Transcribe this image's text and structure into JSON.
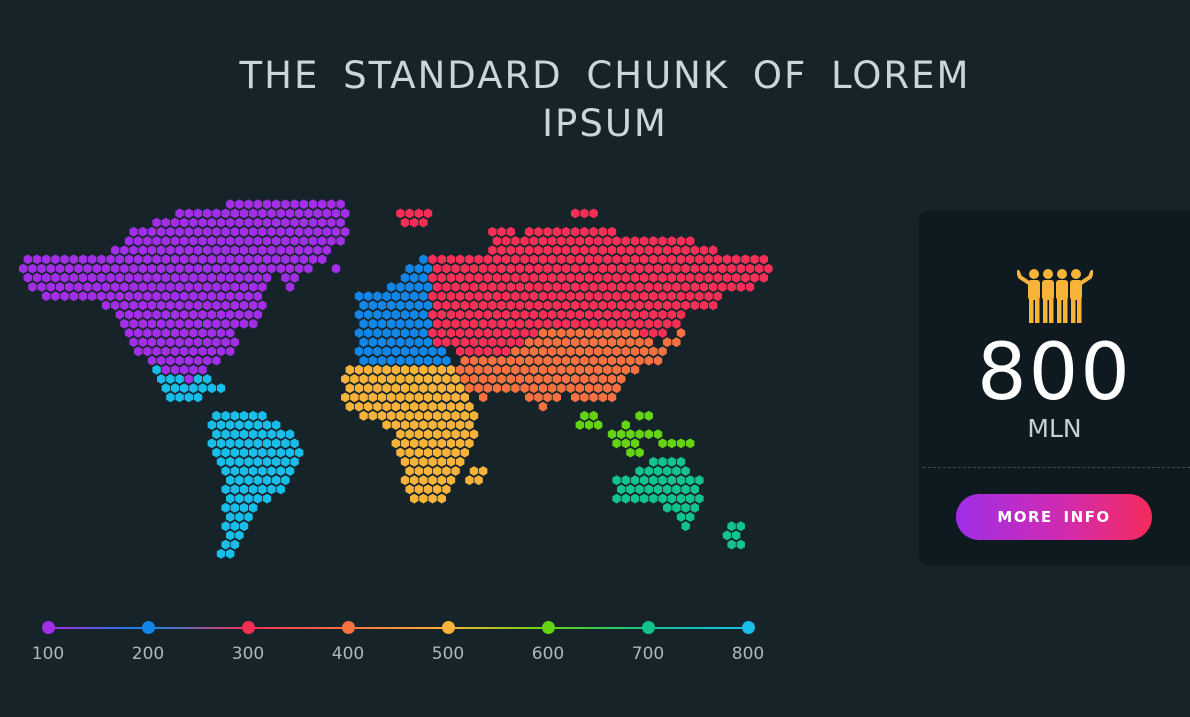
{
  "title": "THE STANDARD CHUNK OF LOREM IPSUM",
  "legend": {
    "stops": [
      {
        "label": "100",
        "color": "#a22ee6"
      },
      {
        "label": "200",
        "color": "#1286e6"
      },
      {
        "label": "300",
        "color": "#f52f56"
      },
      {
        "label": "400",
        "color": "#f77240"
      },
      {
        "label": "500",
        "color": "#f8b33a"
      },
      {
        "label": "600",
        "color": "#64d312"
      },
      {
        "label": "700",
        "color": "#13c38d"
      },
      {
        "label": "800",
        "color": "#18bde9"
      }
    ]
  },
  "regions": [
    {
      "name": "north-america",
      "color": "#a22ee6"
    },
    {
      "name": "europe-west",
      "color": "#1286e6"
    },
    {
      "name": "russia-north-asia",
      "color": "#f52f56"
    },
    {
      "name": "south-asia",
      "color": "#f77240"
    },
    {
      "name": "africa",
      "color": "#f8b33a"
    },
    {
      "name": "southeast-asia",
      "color": "#64d312"
    },
    {
      "name": "australia",
      "color": "#13c38d"
    },
    {
      "name": "south-america",
      "color": "#18bde9"
    }
  ],
  "panel": {
    "icon": "people-group-icon",
    "icon_color": "#f8b33a",
    "number": "800",
    "unit": "MLN",
    "button_label": "MORE INFO"
  }
}
